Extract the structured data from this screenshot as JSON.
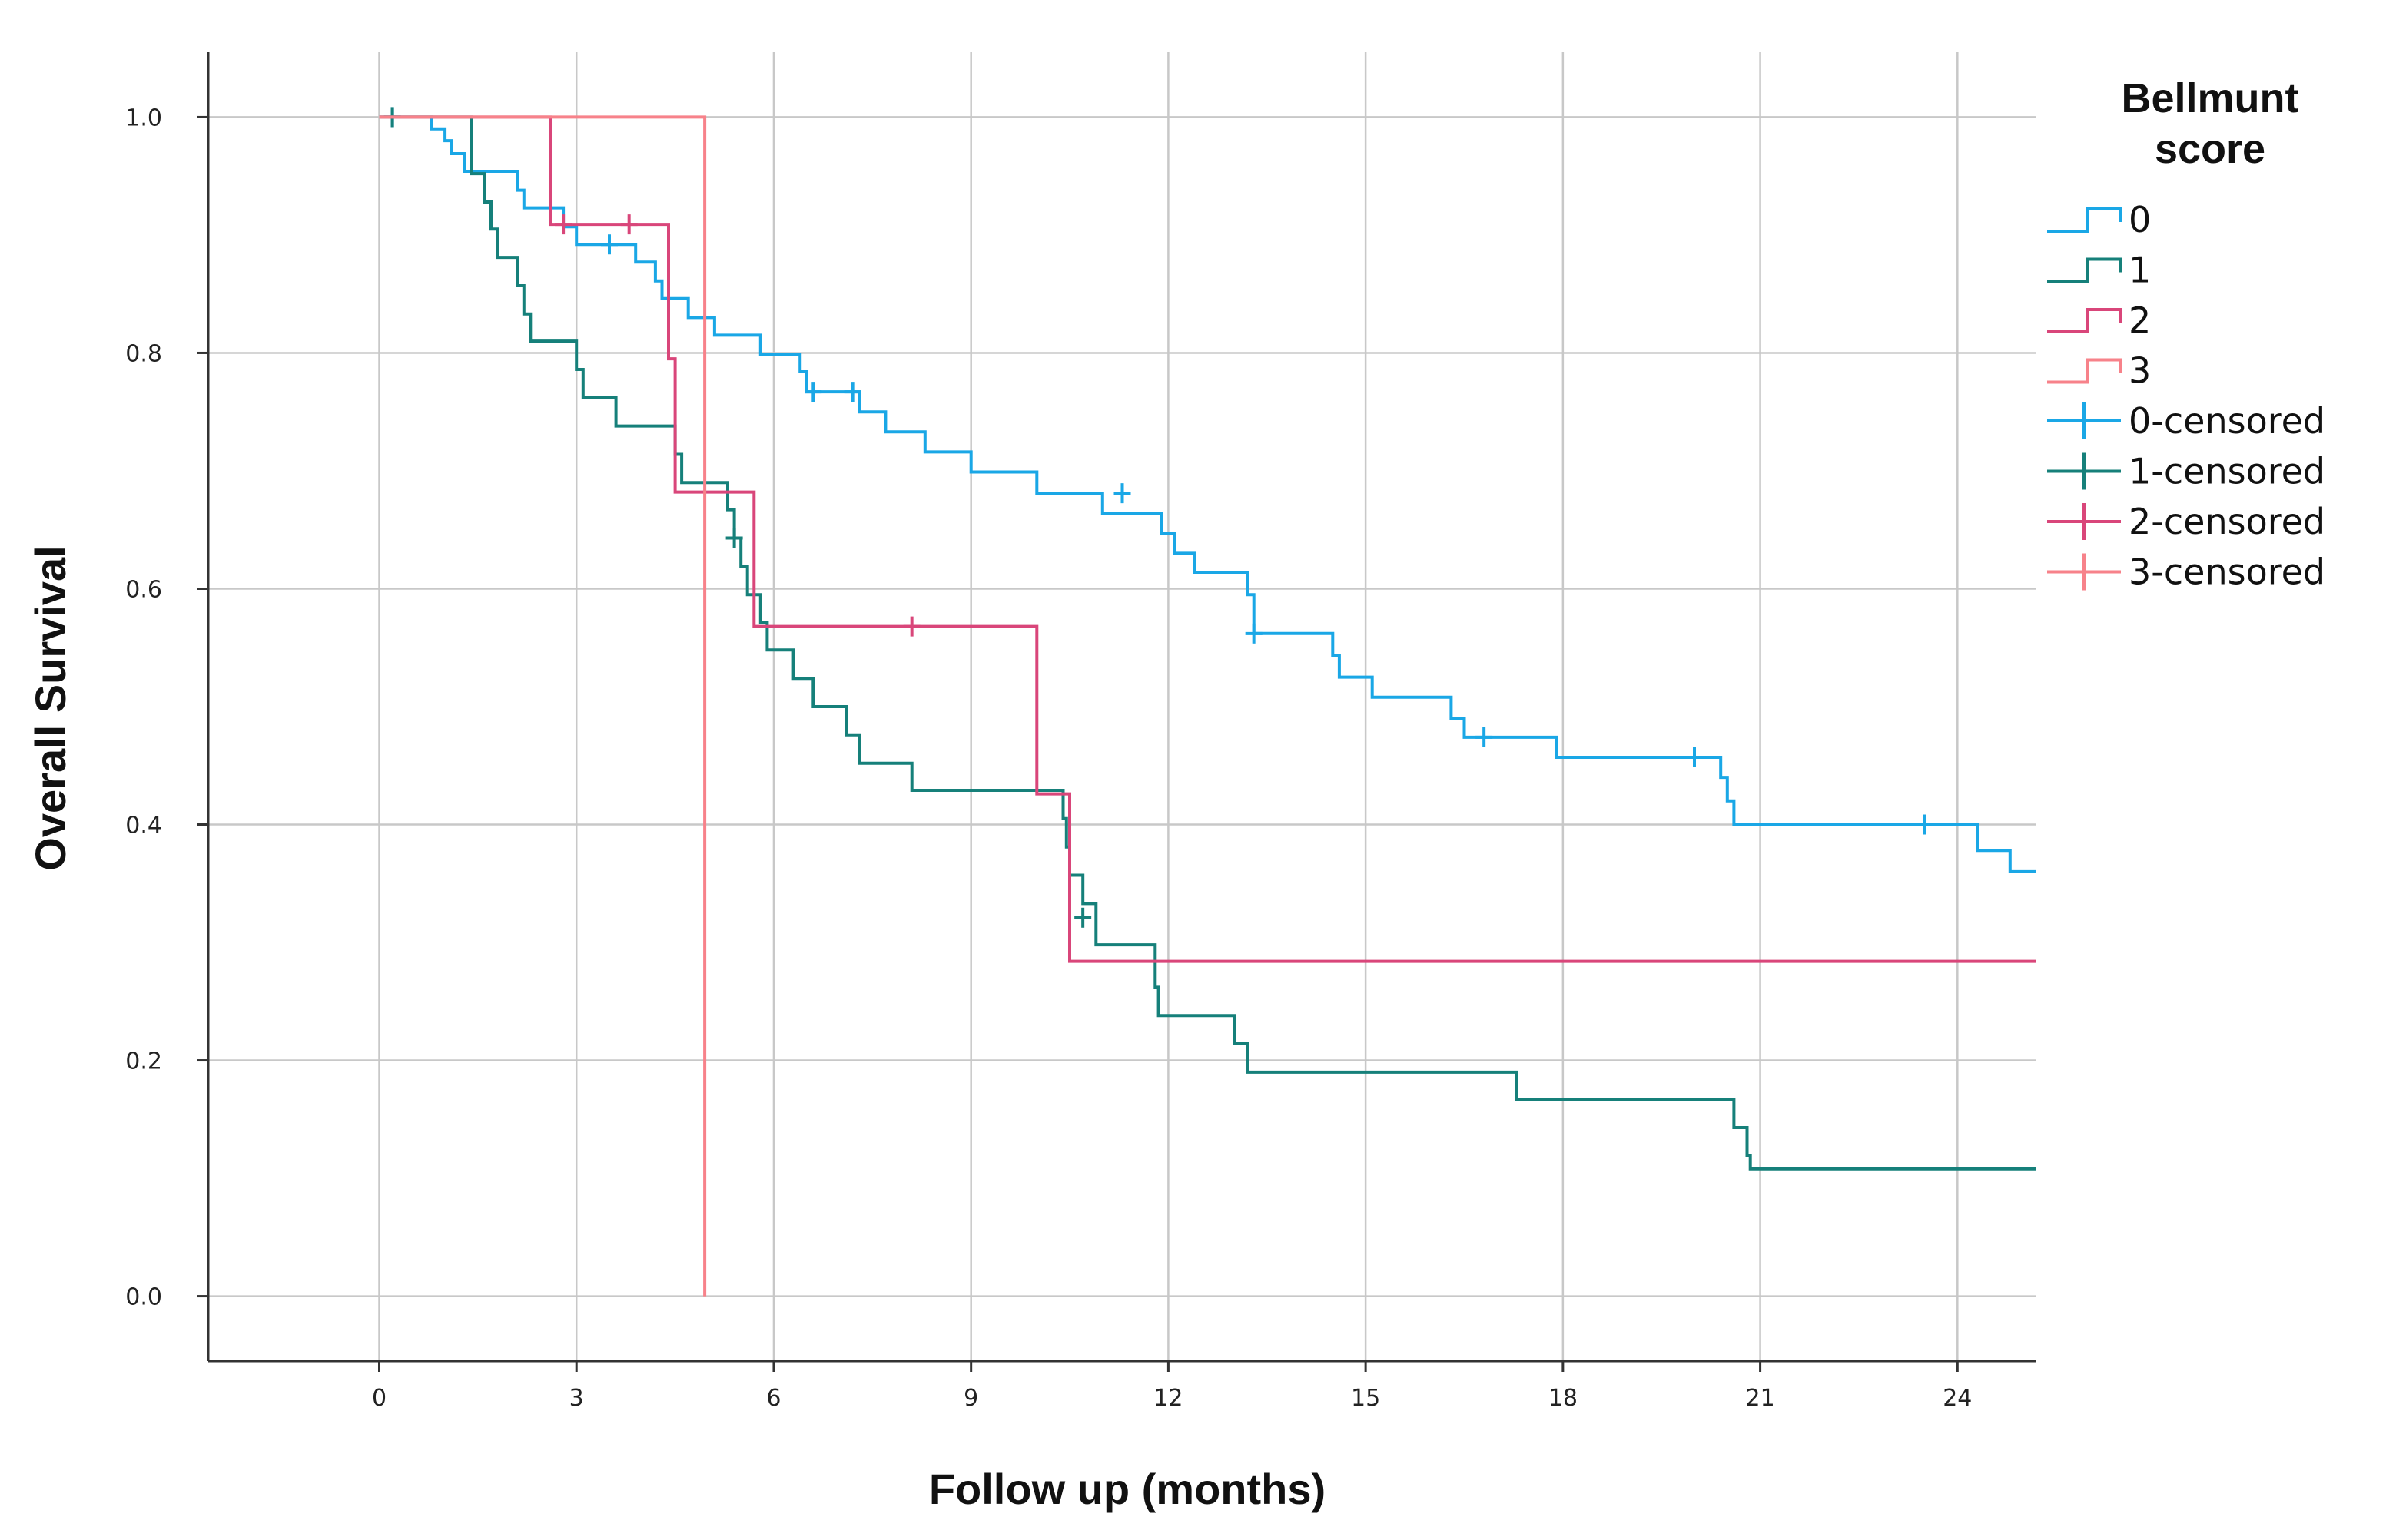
{
  "chart_data": {
    "type": "line",
    "subtype": "kaplan-meier",
    "title": "",
    "xlabel": "Follow up (months)",
    "ylabel": "Overall Survival",
    "xlim": [
      -2.6,
      25.2
    ],
    "ylim": [
      -0.055,
      1.055
    ],
    "xticks": [
      0,
      3,
      6,
      9,
      12,
      15,
      18,
      21,
      24
    ],
    "xtick_labels": [
      "0",
      "3",
      "6",
      "9",
      "12",
      "15",
      "18",
      "21",
      "24"
    ],
    "yticks": [
      0.0,
      0.2,
      0.4,
      0.6,
      0.8,
      1.0
    ],
    "ytick_labels": [
      "0.0",
      "0.2",
      "0.4",
      "0.6",
      "0.8",
      "1.0"
    ],
    "grid": true,
    "legend": {
      "title": "Bellmunt score",
      "title_lines": [
        "Bellmunt",
        "score"
      ],
      "placement": "right",
      "entries": [
        "0",
        "1",
        "2",
        "3",
        "0-censored",
        "1-censored",
        "2-censored",
        "3-censored"
      ]
    },
    "series": [
      {
        "name": "0",
        "color": "#1aa7e6",
        "steps": [
          [
            0,
            1.0
          ],
          [
            0.8,
            0.99
          ],
          [
            1.0,
            0.98
          ],
          [
            1.1,
            0.969
          ],
          [
            1.3,
            0.954
          ],
          [
            2.1,
            0.938
          ],
          [
            2.2,
            0.923
          ],
          [
            2.8,
            0.907
          ],
          [
            3.0,
            0.892
          ],
          [
            3.9,
            0.877
          ],
          [
            4.2,
            0.861
          ],
          [
            4.3,
            0.846
          ],
          [
            4.7,
            0.83
          ],
          [
            5.1,
            0.815
          ],
          [
            5.8,
            0.799
          ],
          [
            6.4,
            0.784
          ],
          [
            6.5,
            0.767
          ],
          [
            7.3,
            0.75
          ],
          [
            7.7,
            0.733
          ],
          [
            8.3,
            0.716
          ],
          [
            9.0,
            0.699
          ],
          [
            10.0,
            0.681
          ],
          [
            11.0,
            0.664
          ],
          [
            11.9,
            0.647
          ],
          [
            12.1,
            0.63
          ],
          [
            12.4,
            0.614
          ],
          [
            13.2,
            0.595
          ],
          [
            13.3,
            0.562
          ],
          [
            14.5,
            0.543
          ],
          [
            14.6,
            0.525
          ],
          [
            15.1,
            0.508
          ],
          [
            16.3,
            0.49
          ],
          [
            16.5,
            0.474
          ],
          [
            17.9,
            0.457
          ],
          [
            20.4,
            0.44
          ],
          [
            20.5,
            0.42
          ],
          [
            20.6,
            0.4
          ],
          [
            24.3,
            0.378
          ],
          [
            24.8,
            0.36
          ],
          [
            25.2,
            0.36
          ]
        ],
        "censored": [
          [
            0.2,
            1.0
          ],
          [
            3.5,
            0.892
          ],
          [
            6.6,
            0.767
          ],
          [
            7.2,
            0.767
          ],
          [
            11.3,
            0.681
          ],
          [
            13.3,
            0.562
          ],
          [
            16.8,
            0.474
          ],
          [
            20.0,
            0.457
          ],
          [
            23.5,
            0.4
          ]
        ]
      },
      {
        "name": "1",
        "color": "#16807a",
        "steps": [
          [
            0,
            1.0
          ],
          [
            1.4,
            0.952
          ],
          [
            1.6,
            0.928
          ],
          [
            1.7,
            0.905
          ],
          [
            1.8,
            0.881
          ],
          [
            2.1,
            0.857
          ],
          [
            2.2,
            0.833
          ],
          [
            2.3,
            0.81
          ],
          [
            3.0,
            0.786
          ],
          [
            3.1,
            0.762
          ],
          [
            3.6,
            0.738
          ],
          [
            4.5,
            0.714
          ],
          [
            4.6,
            0.69
          ],
          [
            5.3,
            0.667
          ],
          [
            5.4,
            0.643
          ],
          [
            5.5,
            0.619
          ],
          [
            5.6,
            0.595
          ],
          [
            5.8,
            0.571
          ],
          [
            5.9,
            0.548
          ],
          [
            6.3,
            0.524
          ],
          [
            6.6,
            0.5
          ],
          [
            7.1,
            0.476
          ],
          [
            7.3,
            0.452
          ],
          [
            8.1,
            0.429
          ],
          [
            10.4,
            0.405
          ],
          [
            10.45,
            0.381
          ],
          [
            10.5,
            0.357
          ],
          [
            10.7,
            0.333
          ],
          [
            10.9,
            0.298
          ],
          [
            11.8,
            0.262
          ],
          [
            11.85,
            0.238
          ],
          [
            13.0,
            0.214
          ],
          [
            13.2,
            0.19
          ],
          [
            17.3,
            0.167
          ],
          [
            20.6,
            0.143
          ],
          [
            20.8,
            0.119
          ],
          [
            20.85,
            0.108
          ],
          [
            25.2,
            0.108
          ]
        ],
        "censored": [
          [
            0.2,
            1.0
          ],
          [
            5.4,
            0.643
          ],
          [
            10.7,
            0.321
          ]
        ]
      },
      {
        "name": "2",
        "color": "#d9467a",
        "steps": [
          [
            0,
            1.0
          ],
          [
            2.6,
            0.909
          ],
          [
            4.4,
            0.795
          ],
          [
            4.5,
            0.682
          ],
          [
            5.7,
            0.568
          ],
          [
            10.0,
            0.426
          ],
          [
            10.5,
            0.284
          ],
          [
            25.2,
            0.284
          ]
        ],
        "censored": [
          [
            2.8,
            0.909
          ],
          [
            3.8,
            0.909
          ],
          [
            8.1,
            0.568
          ]
        ]
      },
      {
        "name": "3",
        "color": "#f7828a",
        "steps": [
          [
            0,
            1.0
          ],
          [
            4.95,
            0.0
          ]
        ],
        "censored": []
      }
    ]
  }
}
